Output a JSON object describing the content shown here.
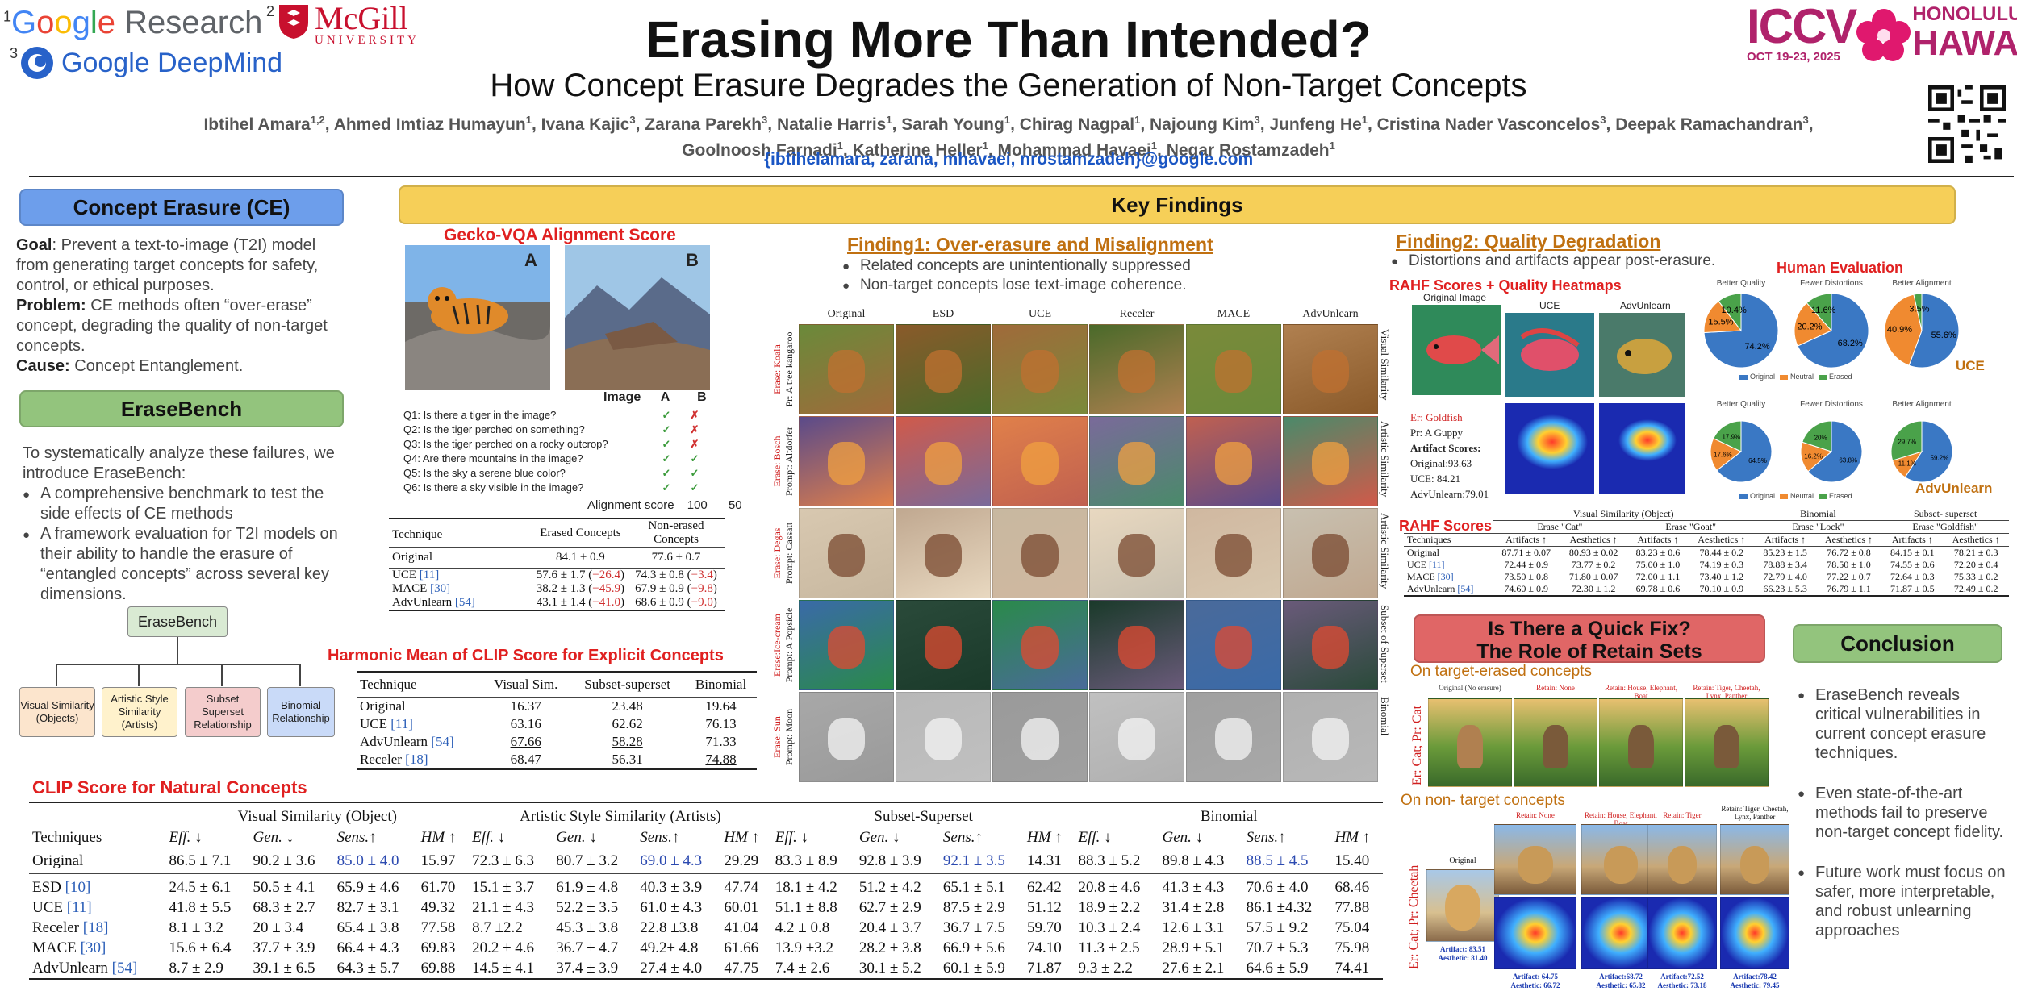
{
  "header": {
    "title": "Erasing More Than Intended?",
    "subtitle": "How Concept Erasure Degrades the Generation of Non-Target Concepts",
    "authors_line1": [
      {
        "name": "Ibtihel Amara",
        "aff": "1,2"
      },
      {
        "name": "Ahmed Imtiaz Humayun",
        "aff": "1"
      },
      {
        "name": "Ivana Kajic",
        "aff": "3"
      },
      {
        "name": "Zarana Parekh",
        "aff": "3"
      },
      {
        "name": "Natalie Harris",
        "aff": "1"
      },
      {
        "name": "Sarah Young",
        "aff": "1"
      },
      {
        "name": "Chirag Nagpal",
        "aff": "1"
      },
      {
        "name": "Najoung Kim",
        "aff": "3"
      },
      {
        "name": "Junfeng He",
        "aff": "1"
      },
      {
        "name": "Cristina Nader Vasconcelos",
        "aff": "3"
      },
      {
        "name": "Deepak Ramachandran",
        "aff": "3"
      }
    ],
    "authors_line2": [
      {
        "name": "Goolnoosh Farnadi",
        "aff": "1"
      },
      {
        "name": "Katherine Heller",
        "aff": "1"
      },
      {
        "name": "Mohammad Havaei",
        "aff": "1"
      },
      {
        "name": "Negar Rostamzadeh",
        "aff": "1"
      }
    ],
    "emails": "{ibtihelamara, zarana, mhavaei, nrostamzadeh}@google.com"
  },
  "logos": {
    "google_research": {
      "num": "1",
      "word_google": "Google",
      "word_research": "Research"
    },
    "mcgill": {
      "num": "2",
      "name": "McGill",
      "sub": "UNIVERSITY"
    },
    "deepmind": {
      "num": "3",
      "text": "Google DeepMind"
    },
    "iccv": {
      "name": "ICCV",
      "dates": "OCT 19-23, 2025",
      "place1": "HONOLULU",
      "place2": "HAWAII"
    }
  },
  "concept_erasure": {
    "heading": "Concept Erasure (CE)",
    "goal_label": "Goal",
    "goal": ": Prevent a text-to-image (T2I) model from generating target concepts for safety, control, or ethical purposes.",
    "problem_label": "Problem:",
    "problem": " CE methods often “over-erase” concept, degrading the quality of non-target concepts.",
    "cause_label": "Cause:",
    "cause": " Concept Entanglement."
  },
  "erasebench": {
    "heading": "EraseBench",
    "intro": "To systematically analyze these failures, we introduce EraseBench:",
    "bullets": [
      "A comprehensive benchmark to test the side effects of CE methods",
      "A framework evaluation for T2I models on their ability to handle the erasure of “entangled concepts” across several key dimensions."
    ],
    "tree_root": "EraseBench",
    "tree_leaves": [
      "Visual Similarity (Objects)",
      "Artistic Style Similarity (Artists)",
      "Subset Superset Relationship",
      "Binomial Relationship"
    ],
    "leaf_colors": [
      "#fce5cd",
      "#fff2cc",
      "#f4cccc",
      "#c9daf8"
    ]
  },
  "key_findings": {
    "heading": "Key Findings"
  },
  "gecko": {
    "title": "Gecko-VQA Alignment Score",
    "image_labels": [
      "A",
      "B"
    ],
    "col_header": "Image",
    "questions": [
      "Q1: Is there a tiger in the image?",
      "Q2: Is the tiger perched on something?",
      "Q3: Is the tiger perched on a rocky outcrop?",
      "Q4: Are there mountains in the image?",
      "Q5: Is the sky a serene blue color?",
      "Q6: Is there a sky visible in the image?"
    ],
    "answers_a": [
      "✓",
      "✓",
      "✓",
      "✓",
      "✓",
      "✓"
    ],
    "answers_b": [
      "✗",
      "✗",
      "✗",
      "✓",
      "✓",
      "✓"
    ],
    "score_label": "Alignment score",
    "score_a": "100",
    "score_b": "50",
    "table": {
      "headers": [
        "Technique",
        "Erased Concepts",
        "Non-erased Concepts"
      ],
      "original": [
        "Original",
        "84.1 ± 0.9",
        "77.6 ± 0.7"
      ],
      "rows": [
        {
          "name": "UCE",
          "cite": "[11]",
          "erased": "57.6 ± 1.7",
          "erased_d": "−26.4",
          "non": "74.3 ± 0.8",
          "non_d": "−3.4"
        },
        {
          "name": "MACE",
          "cite": "[30]",
          "erased": "38.2 ± 1.3",
          "erased_d": "−45.9",
          "non": "67.9 ± 0.9",
          "non_d": "−9.8"
        },
        {
          "name": "AdvUnlearn",
          "cite": "[54]",
          "erased": "43.1 ± 1.4",
          "erased_d": "−41.0",
          "non": "68.6 ± 0.9",
          "non_d": "−9.0"
        }
      ]
    }
  },
  "harmonic": {
    "title": "Harmonic Mean  of  CLIP Score for Explicit Concepts",
    "headers": [
      "Technique",
      "Visual Sim.",
      "Subset-superset",
      "Binomial"
    ],
    "rows": [
      {
        "name": "Original",
        "cite": "",
        "v": "16.37",
        "s": "23.48",
        "b": "19.64"
      },
      {
        "name": "UCE",
        "cite": "[11]",
        "v": "63.16",
        "s": "62.62",
        "b": "76.13"
      },
      {
        "name": "AdvUnlearn",
        "cite": "[54]",
        "v": "67.66",
        "s": "58.28",
        "b": "71.33"
      },
      {
        "name": "Receler",
        "cite": "[18]",
        "v": "68.47",
        "s": "56.31",
        "b": "74.88"
      }
    ]
  },
  "finding1": {
    "title": "Finding1: Over-erasure and Misalignment",
    "bullets": [
      "Related concepts are unintentionally suppressed",
      "Non-target concepts lose text-image coherence."
    ],
    "columns": [
      "Original",
      "ESD",
      "UCE",
      "Receler",
      "MACE",
      "AdvUnlearn"
    ],
    "rows": [
      {
        "erase": "Erase: Koala",
        "prompt": "Pr: A tree kangaroo"
      },
      {
        "erase": "Erase: Bosch",
        "prompt": "Prompt: Altdorfer"
      },
      {
        "erase": "Erase: Degas",
        "prompt": "Prompt: Cassatt"
      },
      {
        "erase": "Erase:Ice-cream",
        "prompt": "Prompt: A Popsicle"
      },
      {
        "erase": "Erase: Sun",
        "prompt": "Prompt: Moon"
      }
    ],
    "side_labels": [
      "Visual Similarity",
      "Artistic Similarity",
      "Artistic Similarity",
      "Subset of Superset",
      "Binomial"
    ]
  },
  "finding2": {
    "title": "Finding2:  Quality Degradation",
    "bullet": "Distortions and artifacts appear post-erasure.",
    "rahf_heatmaps_title": "RAHF Scores + Quality Heatmaps",
    "img_labels": [
      "Original Image",
      "UCE",
      "AdvUnlearn"
    ],
    "er": "Er: Goldfish",
    "pr": "Pr: A Guppy",
    "artifact_label": "Artifact Scores:",
    "scores": [
      "Original:93.63",
      "UCE: 84.21",
      "AdvUnlearn:79.01"
    ],
    "human_eval_title": "Human Evaluation",
    "pie_titles": [
      "Better Quality",
      "Fewer Distortions",
      "Better Alignment"
    ],
    "legend": [
      "Original",
      "Neutral",
      "Erased"
    ],
    "label_uce": "UCE",
    "label_adv": "AdvUnlearn",
    "pies_uce": [
      [
        74.2,
        15.5,
        10.4
      ],
      [
        68.2,
        20.2,
        11.6
      ],
      [
        55.6,
        40.9,
        3.5
      ]
    ],
    "pies_adv": [
      [
        64.5,
        17.6,
        17.9
      ],
      [
        63.8,
        16.2,
        20.0
      ],
      [
        59.2,
        11.1,
        29.7
      ]
    ],
    "pie_colors": [
      "#3a78c4",
      "#f08a30",
      "#4aa24a"
    ]
  },
  "rahf_table": {
    "title": "RAHF Scores",
    "group_headers": [
      "Visual Similarity (Object)",
      "Binomial",
      "Subset- superset"
    ],
    "erase_headers": [
      "Erase \"Cat\"",
      "Erase \"Goat\"",
      "Erase \"Lock\"",
      "Erase \"Goldfish\""
    ],
    "metric_headers": [
      "Artifacts ↑",
      "Aesthetics ↑",
      "Artifacts ↑",
      "Aesthetics ↑",
      "Artifacts ↑",
      "Aesthetics ↑",
      "Artifacts ↑",
      "Aesthetics ↑"
    ],
    "tech_header": "Techniques",
    "rows": [
      {
        "name": "Original",
        "cite": "",
        "vals": [
          "87.71 ± 0.07",
          "80.93 ± 0.02",
          "83.23 ± 0.6",
          "78.44 ± 0.2",
          "85.23 ± 1.5",
          "76.72 ± 0.8",
          "84.15 ± 0.1",
          "78.21 ± 0.3"
        ]
      },
      {
        "name": "UCE",
        "cite": "[11]",
        "vals": [
          "72.44 ± 0.9",
          "73.77 ± 0.2",
          "75.00 ± 1.0",
          "74.19 ± 0.3",
          "78.88 ± 3.4",
          "78.50 ± 1.0",
          "74.55 ± 0.6",
          "72.20 ± 0.4"
        ]
      },
      {
        "name": "MACE",
        "cite": "[30]",
        "vals": [
          "73.50 ± 0.8",
          "71.80 ± 0.07",
          "72.00 ± 1.1",
          "73.40 ± 1.2",
          "72.79 ± 4.0",
          "77.22 ± 0.7",
          "72.64 ± 0.3",
          "75.33 ± 0.2"
        ]
      },
      {
        "name": "AdvUnlearn",
        "cite": "[54]",
        "vals": [
          "74.60 ± 0.9",
          "72.30 ± 1.2",
          "69.78 ± 0.6",
          "70.10 ± 0.9",
          "66.23 ± 5.3",
          "76.79 ± 1.1",
          "71.87 ± 0.5",
          "72.49 ± 0.2"
        ]
      }
    ]
  },
  "clip_table": {
    "title": "CLIP Score for Natural Concepts",
    "groups": [
      "Visual Similarity (Object)",
      "Artistic Style Similarity (Artists)",
      "Subset-Superset",
      "Binomial"
    ],
    "tech_header": "Techniques",
    "metrics": [
      "Eff. ↓",
      "Gen. ↓",
      "Sens.↑",
      "HM ↑"
    ],
    "original": {
      "name": "Original",
      "vals": [
        "86.5 ± 7.1",
        "90.2 ± 3.6",
        "85.0 ± 4.0",
        "15.97",
        "72.3 ± 6.3",
        "80.7 ± 3.2",
        "69.0 ± 4.3",
        "29.29",
        "83.3 ± 8.9",
        "92.8 ± 3.9",
        "92.1 ± 3.5",
        "14.31",
        "88.3 ± 5.2",
        "89.8 ± 4.3",
        "88.5 ± 4.5",
        "15.40"
      ]
    },
    "rows": [
      {
        "name": "ESD",
        "cite": "[10]",
        "vals": [
          "24.5 ± 6.1",
          "50.5 ± 4.1",
          "65.9 ± 4.6",
          "61.70",
          "15.1 ± 3.7",
          "61.9 ± 4.8",
          "40.3 ± 3.9",
          "47.74",
          "18.1 ± 4.2",
          "51.2 ± 4.2",
          "65.1 ± 5.1",
          "62.42",
          "20.8 ± 4.6",
          "41.3 ± 4.3",
          "70.6 ± 4.0",
          "68.46"
        ]
      },
      {
        "name": "UCE",
        "cite": "[11]",
        "vals": [
          "41.8 ± 5.5",
          "68.3 ± 2.7",
          "82.7 ± 3.1",
          "49.32",
          "21.1 ± 4.3",
          "52.2 ± 3.5",
          "61.0 ± 4.3",
          "60.01",
          "51.1 ± 8.8",
          "62.7 ± 2.9",
          "87.5 ± 2.9",
          "51.12",
          "18.9 ± 2.2",
          "31.4 ± 2.8",
          "86.1 ±4.32",
          "77.88"
        ]
      },
      {
        "name": "Receler",
        "cite": "[18]",
        "vals": [
          "8.1 ± 3.2",
          "20 ± 3.4",
          "65.4 ± 3.8",
          "77.58",
          "8.7 ±2.2",
          "45.3 ± 3.8",
          "22.8 ±3.8",
          "41.04",
          "4.2 ± 0.8",
          "20.4 ± 3.7",
          "36.7 ± 7.5",
          "59.70",
          "10.3 ± 2.4",
          "12.6 ± 3.1",
          "57.5 ± 9.2",
          "75.04"
        ]
      },
      {
        "name": "MACE",
        "cite": "[30]",
        "vals": [
          "15.6 ± 6.4",
          "37.7 ± 3.9",
          "66.4 ± 4.3",
          "69.83",
          "20.2 ± 4.6",
          "36.7 ± 4.7",
          "49.2± 4.8",
          "61.66",
          "13.9 ±3.2",
          "28.2 ± 3.8",
          "66.9 ± 5.6",
          "74.10",
          "11.3 ± 2.5",
          "28.9 ± 5.1",
          "70.7 ± 5.3",
          "75.98"
        ]
      },
      {
        "name": "AdvUnlearn",
        "cite": "[54]",
        "vals": [
          "8.7 ± 2.9",
          "39.1 ± 6.5",
          "64.3 ± 5.7",
          "69.88",
          "14.5 ± 4.1",
          "37.4 ± 3.9",
          "27.4 ± 4.0",
          "47.75",
          "7.4 ± 2.6",
          "30.1 ± 5.2",
          "60.1 ± 5.9",
          "71.87",
          "9.3 ± 2.2",
          "27.6 ± 2.1",
          "64.6 ± 5.9",
          "74.41"
        ]
      }
    ]
  },
  "quick_fix": {
    "heading_line1": "Is There a Quick Fix?",
    "heading_line2": "The Role of Retain Sets",
    "on_target": "On target-erased concepts",
    "on_non_target": "On non- target concepts",
    "cat_side": "Er: Cat; Pr: Cat",
    "cheetah_side": "Er: Cat; Pr: Cheetah",
    "cat_captions": [
      "Original (No erasure)",
      "Retain: None",
      "Retain: House, Elephant, Boat",
      "Retain: Tiger, Cheetah, Lynx, Panther"
    ],
    "cheetah_captions": [
      "Original",
      "Retain: None",
      "Retain: House, Elephant, Boat",
      "Retain: Tiger",
      "Retain: Tiger, Cheetah, Lynx, Panther"
    ],
    "orig_scores": [
      "Artifact: 83.51",
      "Aesthetic: 81.40"
    ],
    "scores": [
      [
        "Artifact: 64.75",
        "Aesthetic: 66.72"
      ],
      [
        "Artifact:68.72",
        "Aesthetic: 65.82"
      ],
      [
        "Artifact:72.52",
        "Aesthetic: 73.18"
      ],
      [
        "Artifact:78.42",
        "Aesthetic: 79.45"
      ]
    ]
  },
  "conclusion": {
    "heading": "Conclusion",
    "bullets": [
      "EraseBench reveals critical vulnerabilities in current concept erasure techniques.",
      "Even state-of-the-art methods fail to preserve non-target concept fidelity.",
      "Future work must focus on safer, more interpretable, and robust unlearning approaches"
    ]
  }
}
